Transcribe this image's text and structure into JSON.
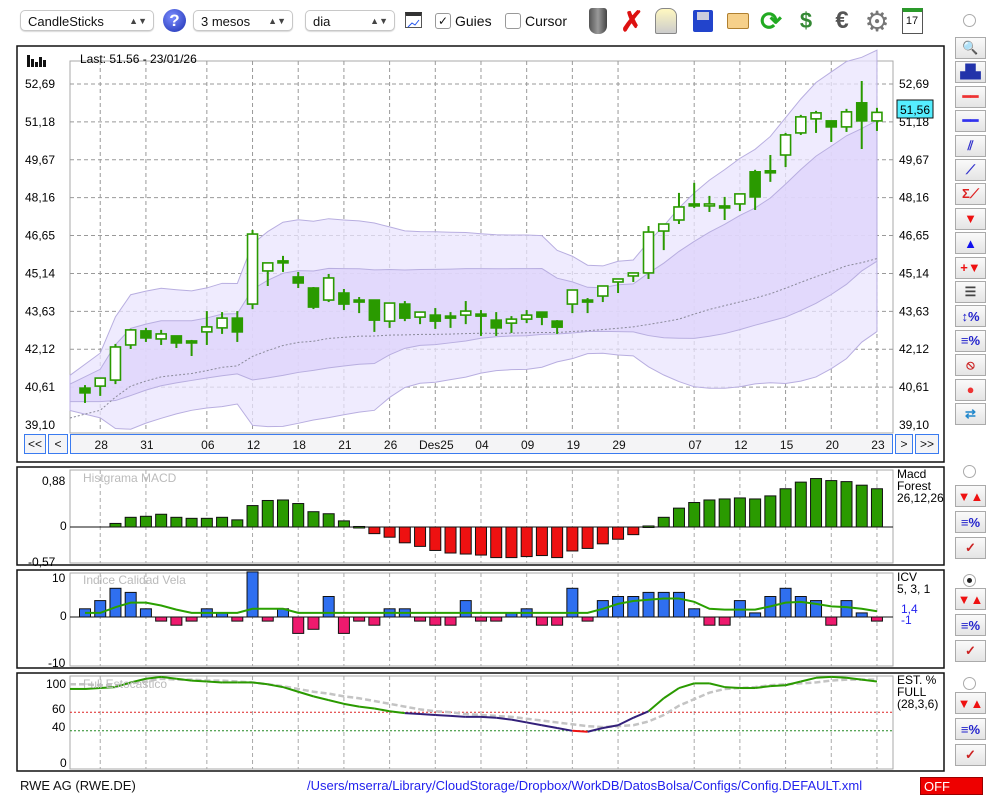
{
  "toolbar": {
    "chart_type": "CandleSticks",
    "period": "3 mesos",
    "interval": "dia",
    "guides_label": "Guies",
    "guides_checked": true,
    "cursor_label": "Cursor",
    "cursor_checked": false,
    "help_icon": "question-circle-icon",
    "icons": [
      "trash-icon",
      "delete-x-icon",
      "lamp-icon",
      "save-floppy-icon",
      "folder-open-icon",
      "refresh-icon",
      "dollar-refresh-icon",
      "euro-icon",
      "gear-icon",
      "calendar-icon"
    ],
    "calendar_day": "17"
  },
  "main_chart": {
    "last_label": "Last: 51.56 - 23/01/26",
    "current_price_badge": "51,56",
    "y_ticks": [
      "52,69",
      "51,18",
      "49,67",
      "48,16",
      "46,65",
      "45,14",
      "43,63",
      "42,12",
      "40,61",
      "39,10"
    ],
    "nav": {
      "first": "<<",
      "prev": "<",
      "next": ">",
      "last": ">>"
    }
  },
  "chart_data": [
    {
      "type": "candlestick",
      "ylim": [
        39.1,
        52.69
      ],
      "x_ticks": [
        {
          "label": "28",
          "candle": 2
        },
        {
          "label": "31",
          "candle": 5
        },
        {
          "label": "06",
          "candle": 9
        },
        {
          "label": "12",
          "candle": 12
        },
        {
          "label": "18",
          "candle": 15
        },
        {
          "label": "21",
          "candle": 18
        },
        {
          "label": "26",
          "candle": 21
        },
        {
          "label": "Des25",
          "candle": 24
        },
        {
          "label": "04",
          "candle": 27
        },
        {
          "label": "09",
          "candle": 30
        },
        {
          "label": "19",
          "candle": 33
        },
        {
          "label": "29",
          "candle": 36
        },
        {
          "label": "07",
          "candle": 41
        },
        {
          "label": "12",
          "candle": 44
        },
        {
          "label": "15",
          "candle": 47
        },
        {
          "label": "20",
          "candle": 50
        },
        {
          "label": "23",
          "candle": 53
        }
      ],
      "ohlc": [
        [
          40.57,
          40.69,
          39.98,
          40.38
        ],
        [
          40.65,
          40.99,
          40.26,
          40.97
        ],
        [
          40.89,
          42.33,
          40.73,
          42.21
        ],
        [
          42.29,
          42.93,
          42.13,
          42.89
        ],
        [
          42.85,
          42.97,
          42.41,
          42.57
        ],
        [
          42.53,
          42.89,
          42.29,
          42.73
        ],
        [
          42.65,
          42.65,
          42.17,
          42.37
        ],
        [
          42.45,
          42.49,
          41.85,
          42.41
        ],
        [
          42.81,
          43.64,
          42.29,
          43.01
        ],
        [
          42.97,
          43.6,
          42.73,
          43.36
        ],
        [
          43.36,
          43.64,
          42.41,
          42.81
        ],
        [
          43.92,
          46.87,
          43.72,
          46.71
        ],
        [
          45.24,
          45.56,
          44.64,
          45.56
        ],
        [
          45.64,
          45.84,
          45.2,
          45.6
        ],
        [
          45.0,
          45.2,
          44.56,
          44.76
        ],
        [
          44.56,
          44.6,
          43.72,
          43.8
        ],
        [
          44.08,
          45.12,
          44.0,
          44.96
        ],
        [
          44.36,
          44.52,
          43.68,
          43.92
        ],
        [
          44.08,
          44.2,
          43.56,
          44.04
        ],
        [
          44.08,
          44.08,
          42.81,
          43.28
        ],
        [
          43.24,
          43.96,
          42.97,
          43.96
        ],
        [
          43.92,
          44.04,
          43.24,
          43.36
        ],
        [
          43.4,
          43.6,
          43.12,
          43.6
        ],
        [
          43.48,
          43.76,
          42.93,
          43.24
        ],
        [
          43.44,
          43.6,
          42.97,
          43.4
        ],
        [
          43.48,
          44.04,
          43.12,
          43.64
        ],
        [
          43.52,
          43.68,
          42.65,
          43.48
        ],
        [
          43.28,
          43.6,
          42.65,
          42.97
        ],
        [
          43.16,
          43.44,
          42.77,
          43.32
        ],
        [
          43.32,
          43.68,
          43.16,
          43.48
        ],
        [
          43.6,
          43.6,
          43.08,
          43.4
        ],
        [
          43.24,
          43.28,
          42.73,
          43.0
        ],
        [
          43.92,
          44.48,
          43.56,
          44.48
        ],
        [
          44.08,
          44.16,
          43.56,
          44.04
        ],
        [
          44.24,
          44.64,
          44.0,
          44.64
        ],
        [
          44.8,
          44.92,
          44.36,
          44.92
        ],
        [
          45.04,
          45.16,
          44.8,
          45.16
        ],
        [
          45.16,
          47.03,
          44.92,
          46.79
        ],
        [
          46.83,
          47.11,
          46.07,
          47.11
        ],
        [
          47.27,
          48.35,
          47.11,
          47.79
        ],
        [
          47.91,
          48.75,
          47.75,
          47.87
        ],
        [
          47.87,
          48.23,
          47.59,
          47.91
        ],
        [
          47.83,
          48.19,
          47.27,
          47.79
        ],
        [
          47.91,
          48.31,
          47.63,
          48.31
        ],
        [
          49.19,
          49.27,
          47.67,
          48.19
        ],
        [
          49.23,
          49.86,
          48.79,
          49.19
        ],
        [
          49.86,
          50.74,
          49.38,
          50.66
        ],
        [
          50.74,
          51.46,
          50.66,
          51.38
        ],
        [
          51.3,
          51.62,
          50.74,
          51.54
        ],
        [
          51.22,
          51.22,
          50.38,
          50.98
        ],
        [
          50.98,
          51.7,
          50.78,
          51.58
        ],
        [
          51.94,
          52.81,
          50.1,
          51.22
        ],
        [
          51.22,
          51.74,
          50.82,
          51.56
        ]
      ],
      "overlays": [
        "bollinger-bands",
        "moving-average-dotted"
      ],
      "grid": true,
      "candle_color": "#2a9a00",
      "band_color": "#d9d0fb"
    },
    {
      "type": "bar",
      "title": "Histgrama MACD",
      "legend": [
        "Macd",
        "Forest",
        "26,12,26"
      ],
      "y_ticks": [
        "0,88",
        "0",
        "-0,57"
      ],
      "first_candle": 3,
      "values": [
        0.07,
        0.19,
        0.21,
        0.25,
        0.19,
        0.17,
        0.17,
        0.19,
        0.14,
        0.42,
        0.52,
        0.53,
        0.46,
        0.3,
        0.26,
        0.12,
        0.01,
        -0.13,
        -0.2,
        -0.31,
        -0.38,
        -0.46,
        -0.51,
        -0.53,
        -0.55,
        -0.6,
        -0.6,
        -0.58,
        -0.56,
        -0.6,
        -0.47,
        -0.42,
        -0.33,
        -0.24,
        -0.15,
        0.02,
        0.19,
        0.37,
        0.48,
        0.53,
        0.55,
        0.57,
        0.55,
        0.61,
        0.75,
        0.88,
        0.95,
        0.91,
        0.89,
        0.82,
        0.75
      ],
      "positive_color": "#2a9a00",
      "negative_color": "#ee1111"
    },
    {
      "type": "bar",
      "title": "Indice Calidad Vela",
      "legend": [
        "ICV",
        "5, 3, 1"
      ],
      "current_values": [
        "1,4",
        "-1"
      ],
      "y_ticks": [
        "10",
        "0",
        "-10"
      ],
      "ylim": [
        -10,
        10
      ],
      "values": [
        2,
        4,
        7,
        6,
        2,
        -1,
        -2,
        -1,
        2,
        1,
        -1,
        11,
        -1,
        2,
        -4,
        -3,
        5,
        -4,
        -1,
        -2,
        2,
        2,
        -1,
        -2,
        -2,
        4,
        -1,
        -1,
        1,
        2,
        -2,
        -2,
        7,
        -1,
        4,
        5,
        5,
        6,
        6,
        6,
        2,
        -2,
        -2,
        4,
        1,
        5,
        7,
        5,
        4,
        -2,
        4,
        1,
        -1
      ],
      "signal": [
        1,
        1,
        2.4,
        3.5,
        3.5,
        2.8,
        1.8,
        1,
        1,
        1,
        1,
        2,
        2,
        2,
        1,
        1,
        1,
        1,
        1,
        1,
        1,
        1,
        1,
        1,
        1,
        1,
        1,
        1,
        1,
        1,
        1,
        1,
        1,
        1,
        2,
        3.2,
        3.9,
        4.2,
        4.5,
        4.5,
        3.7,
        2,
        1.8,
        1.8,
        1.8,
        2.6,
        3.5,
        3.7,
        3.2,
        2.6,
        2.4,
        2,
        1.4
      ],
      "positive_color": "#2f6ff0",
      "negative_color": "#ee1a6e",
      "signal_color": "#2aa000"
    },
    {
      "type": "line",
      "title": "Full Estocastico",
      "legend": [
        "EST. %",
        "FULL",
        "(28,3,6)"
      ],
      "y_ticks": [
        "100",
        "60",
        "40",
        "0"
      ],
      "thresholds": [
        60,
        40
      ],
      "k": [
        85,
        86,
        87,
        92,
        96,
        98,
        96,
        94,
        93,
        92,
        92,
        92,
        90,
        87,
        82,
        77,
        73,
        69,
        66,
        64,
        61,
        59,
        58,
        57,
        56,
        55,
        55,
        54,
        52,
        49,
        46,
        43,
        40,
        39,
        43,
        46,
        54,
        61,
        75,
        86,
        91,
        91,
        87,
        86,
        86,
        88,
        89,
        93,
        97,
        98,
        97,
        95,
        93
      ],
      "d": [
        90,
        89,
        89,
        91,
        93,
        96,
        95,
        95,
        94,
        94,
        93,
        92,
        90,
        88,
        85,
        82,
        80,
        77,
        75,
        72,
        69,
        66,
        63,
        61,
        60,
        58,
        57,
        56,
        55,
        53,
        51,
        49,
        47,
        45,
        44,
        45,
        46,
        50,
        57,
        67,
        74,
        81,
        85,
        86,
        87,
        89,
        90,
        91,
        92,
        94,
        95,
        95,
        95
      ],
      "k_colors": {
        "high": "#2a9a00",
        "mid": "#33207a",
        "low": "#ee1111"
      },
      "d_color": "#c4c4c4"
    }
  ],
  "footer": {
    "symbol": "RWE AG (RWE.DE)",
    "config_path": "/Users/mserra/Library/CloudStorage/Dropbox/WorkDB/DatosBolsa/Configs/Config.DEFAULT.xml",
    "status": "OFF"
  },
  "right_toolbar": {
    "main": [
      "zoom-icon",
      "chart-overview-icon",
      "red-line-icon",
      "blue-line-icon",
      "channel-icon",
      "trendline-icon",
      "sigma-trendline-icon",
      "sell-arrow-icon",
      "buy-arrow-icon",
      "add-signal-icon",
      "dashed-lines-icon",
      "range-percent-icon",
      "lines-percent-icon",
      "no-entry-icon",
      "record-icon",
      "swap-icon"
    ],
    "indicator": [
      "sell-buy-arrows-icon",
      "lines-percent-icon",
      "crossing-lines-icon"
    ],
    "selected_indicator": "ICV"
  }
}
